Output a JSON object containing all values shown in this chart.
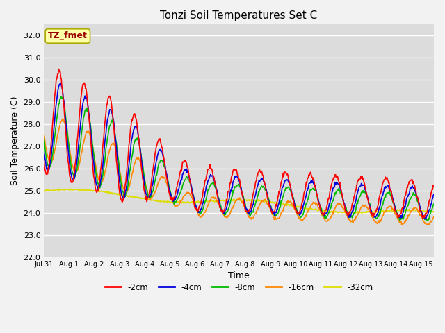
{
  "title": "Tonzi Soil Temperatures Set C",
  "xlabel": "Time",
  "ylabel": "Soil Temperature (C)",
  "ylim": [
    22.0,
    32.5
  ],
  "yticks": [
    22.0,
    23.0,
    24.0,
    25.0,
    26.0,
    27.0,
    28.0,
    29.0,
    30.0,
    31.0,
    32.0
  ],
  "xtick_labels": [
    "Jul 31",
    "Aug 1",
    "Aug 2",
    "Aug 3",
    "Aug 4",
    "Aug 5",
    "Aug 6",
    "Aug 7",
    "Aug 8",
    "Aug 9",
    "Aug 10",
    "Aug 11",
    "Aug 12",
    "Aug 13",
    "Aug 14",
    "Aug 15"
  ],
  "legend_labels": [
    "-2cm",
    "-4cm",
    "-8cm",
    "-16cm",
    "-32cm"
  ],
  "legend_colors": [
    "#ff0000",
    "#0000dd",
    "#00bb00",
    "#ff8800",
    "#dddd00"
  ],
  "annotation_text": "TZ_fmet",
  "annotation_bg": "#ffffaa",
  "annotation_border": "#aaaa00",
  "annotation_text_color": "#990000",
  "n_days": 15.5,
  "samples_per_day": 48
}
